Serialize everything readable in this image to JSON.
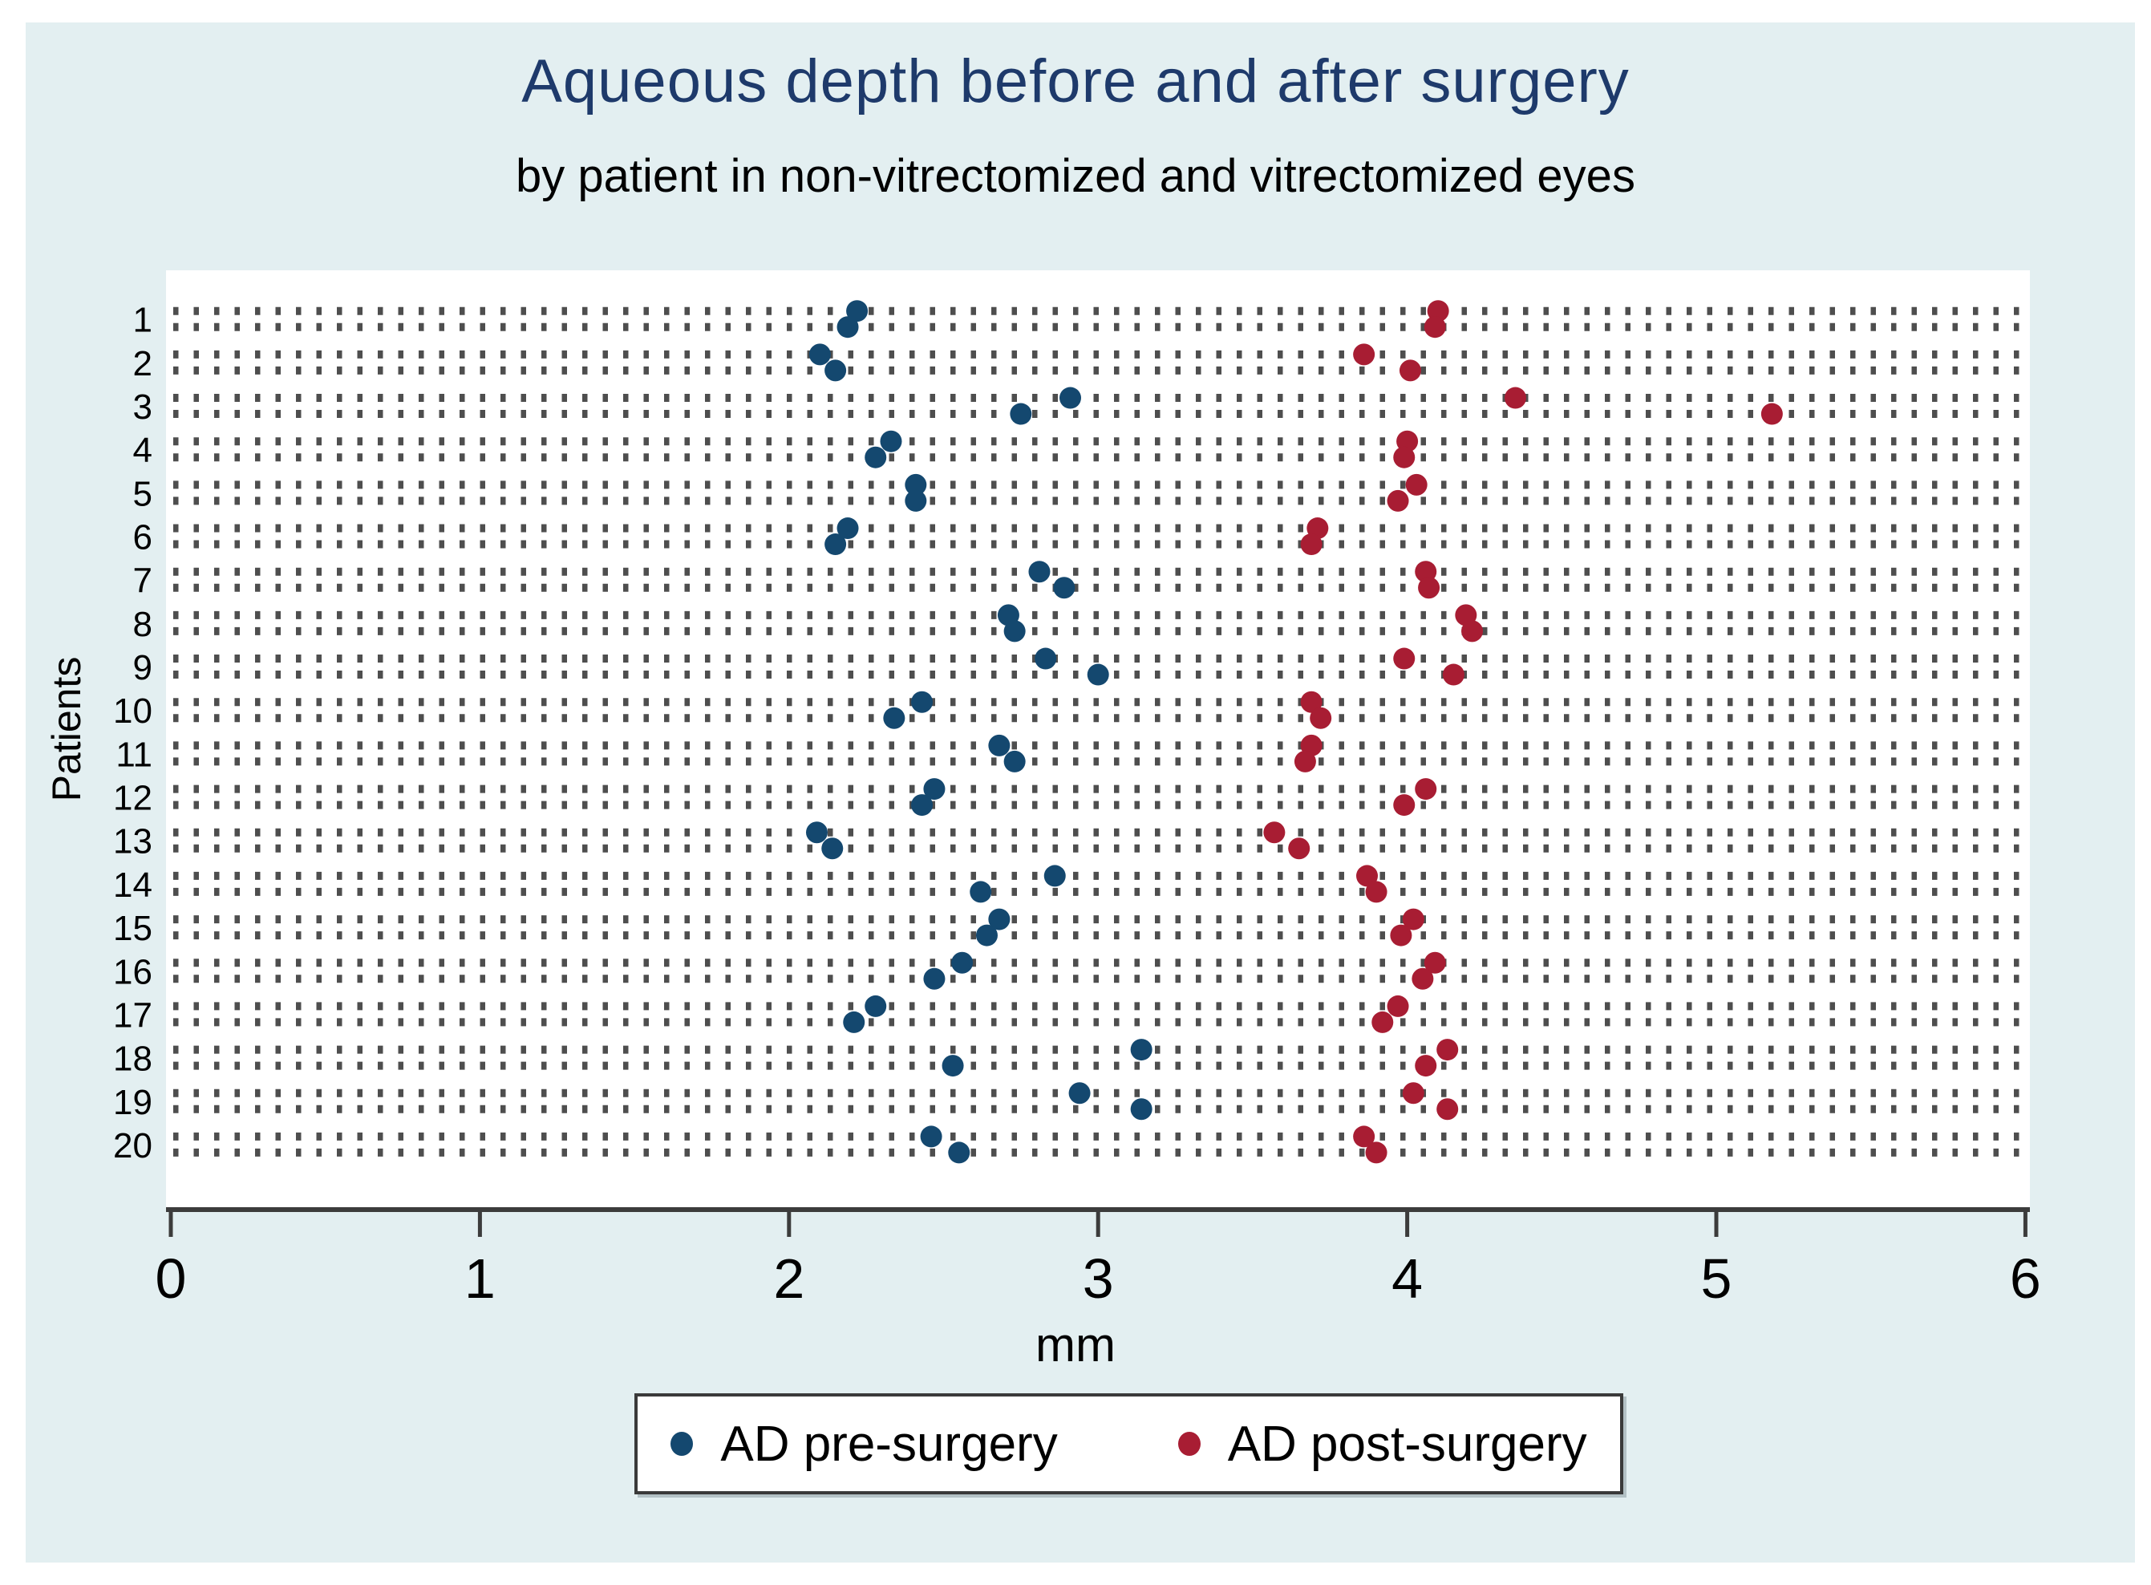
{
  "figure": {
    "title": "Aqueous depth before and after surgery",
    "subtitle": "by patient in non-vitrectomized and vitrectomized eyes",
    "title_color": "#1e3a6b",
    "background_color": "#e3eff1"
  },
  "chart_data": {
    "type": "scatter",
    "title": "Aqueous depth before and after surgery",
    "subtitle": "by patient in non-vitrectomized and vitrectomized eyes",
    "xlabel": "mm",
    "ylabel": "Patients",
    "xlim": [
      0,
      6.02
    ],
    "xticks": [
      0,
      1,
      2,
      3,
      4,
      5,
      6
    ],
    "grid": "dotted horizontal line per eye-row, two rows per patient",
    "legend_position": "bottom center",
    "units": "mm",
    "series": [
      {
        "name": "AD pre-surgery",
        "key": "pre",
        "color": "#14486f"
      },
      {
        "name": "AD post-surgery",
        "key": "post",
        "color": "#a81d33"
      }
    ],
    "patients": [
      {
        "id": "1",
        "eyes": [
          {
            "pre": 2.22,
            "post": 4.1
          },
          {
            "pre": 2.19,
            "post": 4.09
          }
        ]
      },
      {
        "id": "2",
        "eyes": [
          {
            "pre": 2.1,
            "post": 3.86
          },
          {
            "pre": 2.15,
            "post": 4.01
          }
        ]
      },
      {
        "id": "3",
        "eyes": [
          {
            "pre": 2.91,
            "post": 4.35
          },
          {
            "pre": 2.75,
            "post": 5.18
          }
        ]
      },
      {
        "id": "4",
        "eyes": [
          {
            "pre": 2.33,
            "post": 4.0
          },
          {
            "pre": 2.28,
            "post": 3.99
          }
        ]
      },
      {
        "id": "5",
        "eyes": [
          {
            "pre": 2.41,
            "post": 4.03
          },
          {
            "pre": 2.41,
            "post": 3.97
          }
        ]
      },
      {
        "id": "6",
        "eyes": [
          {
            "pre": 2.19,
            "post": 3.71
          },
          {
            "pre": 2.15,
            "post": 3.69
          }
        ]
      },
      {
        "id": "7",
        "eyes": [
          {
            "pre": 2.81,
            "post": 4.06
          },
          {
            "pre": 2.89,
            "post": 4.07
          }
        ]
      },
      {
        "id": "8",
        "eyes": [
          {
            "pre": 2.71,
            "post": 4.19
          },
          {
            "pre": 2.73,
            "post": 4.21
          }
        ]
      },
      {
        "id": "9",
        "eyes": [
          {
            "pre": 2.83,
            "post": 3.99
          },
          {
            "pre": 3.0,
            "post": 4.15
          }
        ]
      },
      {
        "id": "10",
        "eyes": [
          {
            "pre": 2.43,
            "post": 3.69
          },
          {
            "pre": 2.34,
            "post": 3.72
          }
        ]
      },
      {
        "id": "11",
        "eyes": [
          {
            "pre": 2.68,
            "post": 3.69
          },
          {
            "pre": 2.73,
            "post": 3.67
          }
        ]
      },
      {
        "id": "12",
        "eyes": [
          {
            "pre": 2.47,
            "post": 4.06
          },
          {
            "pre": 2.43,
            "post": 3.99
          }
        ]
      },
      {
        "id": "13",
        "eyes": [
          {
            "pre": 2.09,
            "post": 3.57
          },
          {
            "pre": 2.14,
            "post": 3.65
          }
        ]
      },
      {
        "id": "14",
        "eyes": [
          {
            "pre": 2.86,
            "post": 3.87
          },
          {
            "pre": 2.62,
            "post": 3.9
          }
        ]
      },
      {
        "id": "15",
        "eyes": [
          {
            "pre": 2.68,
            "post": 4.02
          },
          {
            "pre": 2.64,
            "post": 3.98
          }
        ]
      },
      {
        "id": "16",
        "eyes": [
          {
            "pre": 2.56,
            "post": 4.09
          },
          {
            "pre": 2.47,
            "post": 4.05
          }
        ]
      },
      {
        "id": "17",
        "eyes": [
          {
            "pre": 2.28,
            "post": 3.97
          },
          {
            "pre": 2.21,
            "post": 3.92
          }
        ]
      },
      {
        "id": "18",
        "eyes": [
          {
            "pre": 3.14,
            "post": 4.13
          },
          {
            "pre": 2.53,
            "post": 4.06
          }
        ]
      },
      {
        "id": "19",
        "eyes": [
          {
            "pre": 2.94,
            "post": 4.02
          },
          {
            "pre": 3.14,
            "post": 4.13
          }
        ]
      },
      {
        "id": "20",
        "eyes": [
          {
            "pre": 2.46,
            "post": 3.86
          },
          {
            "pre": 2.55,
            "post": 3.9
          }
        ]
      }
    ]
  },
  "legend": {
    "items": [
      {
        "label": "AD pre-surgery",
        "color": "#14486f"
      },
      {
        "label": "AD post-surgery",
        "color": "#a81d33"
      }
    ]
  }
}
